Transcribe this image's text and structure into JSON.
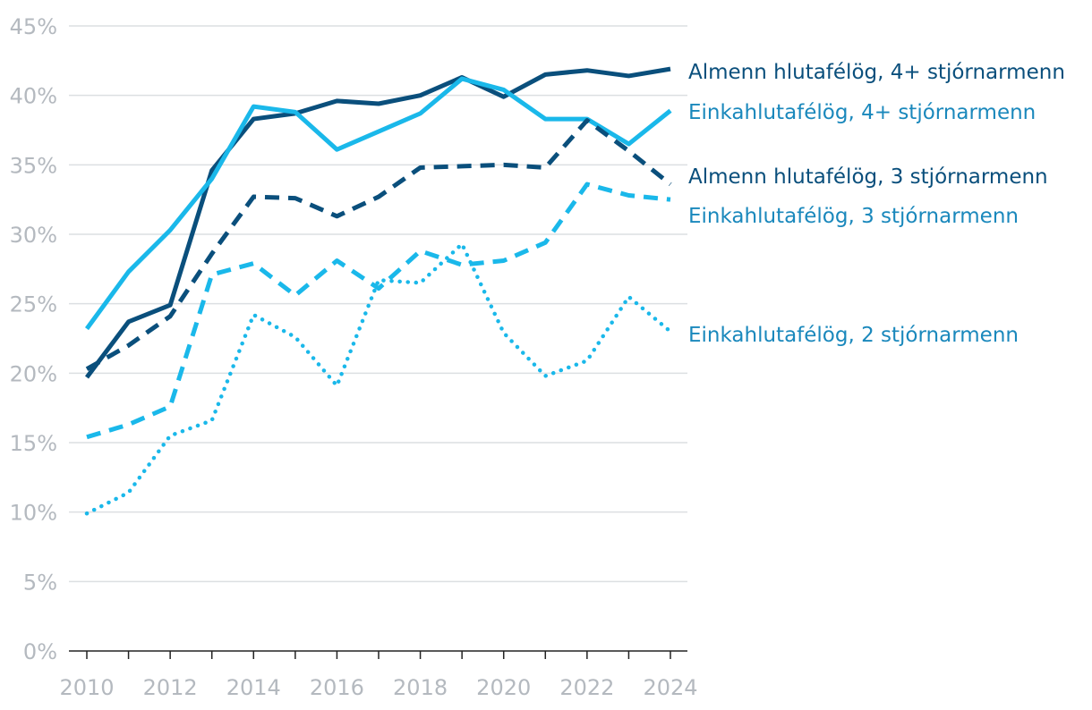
{
  "chart_data": {
    "type": "line",
    "title": "",
    "xlabel": "",
    "ylabel": "",
    "x": [
      2010,
      2011,
      2012,
      2013,
      2014,
      2015,
      2016,
      2017,
      2018,
      2019,
      2020,
      2021,
      2022,
      2023,
      2024
    ],
    "ylim": [
      0,
      45
    ],
    "grid": true,
    "legend": "right, labels beside line ends",
    "y_ticks": [
      "0%",
      "5%",
      "10%",
      "15%",
      "20%",
      "25%",
      "30%",
      "35%",
      "40%",
      "45%"
    ],
    "x_ticks": [
      "2010",
      "2012",
      "2014",
      "2016",
      "2018",
      "2020",
      "2022",
      "2024"
    ],
    "series": [
      {
        "name": "Almenn hlutafélög, 4+ stjórnarmenn",
        "color": "#0a4f7c",
        "style": "solid",
        "values": [
          19.7,
          23.7,
          24.9,
          34.6,
          38.3,
          38.7,
          39.6,
          39.4,
          40.0,
          41.3,
          39.9,
          41.5,
          41.8,
          41.4,
          41.9
        ]
      },
      {
        "name": "Einkahlutafélög, 4+ stjórnarmenn",
        "color": "#1ab8ea",
        "style": "solid",
        "values": [
          23.2,
          27.3,
          30.3,
          34.0,
          39.2,
          38.8,
          36.1,
          37.4,
          38.7,
          41.2,
          40.4,
          38.3,
          38.3,
          36.5,
          38.9
        ]
      },
      {
        "name": "Almenn hlutafélög, 3 stjórnarmenn",
        "color": "#0a4f7c",
        "style": "dashed",
        "values": [
          20.3,
          22.0,
          24.1,
          28.6,
          32.7,
          32.6,
          31.3,
          32.7,
          34.8,
          34.9,
          35.0,
          34.8,
          38.2,
          36.0,
          33.6
        ]
      },
      {
        "name": "Einkahlutafélög, 3 stjórnarmenn",
        "color": "#1ab8ea",
        "style": "dashed",
        "values": [
          15.4,
          16.3,
          17.6,
          27.1,
          27.9,
          25.6,
          28.1,
          26.1,
          28.8,
          27.8,
          28.1,
          29.4,
          33.6,
          32.8,
          32.5
        ]
      },
      {
        "name": "Einkahlutafélög, 2 stjórnarmenn",
        "color": "#1ab8ea",
        "style": "dotted",
        "values": [
          9.9,
          11.4,
          15.5,
          16.6,
          24.2,
          22.6,
          19.1,
          26.7,
          26.5,
          29.3,
          22.9,
          19.8,
          20.9,
          25.5,
          23.0
        ]
      }
    ]
  },
  "labels": [
    {
      "text": "Almenn hlutafélög, 4+ stjórnarmenn",
      "color": "#0a4f7c"
    },
    {
      "text": "Einkahlutafélög, 4+ stjórnarmenn",
      "color": "#1a88bc"
    },
    {
      "text": "Almenn hlutafélög, 3 stjórnarmenn",
      "color": "#0a4f7c"
    },
    {
      "text": "Einkahlutafélög, 3 stjórnarmenn",
      "color": "#1a88bc"
    },
    {
      "text": "Einkahlutafélög, 2 stjórnarmenn",
      "color": "#1a88bc"
    }
  ]
}
